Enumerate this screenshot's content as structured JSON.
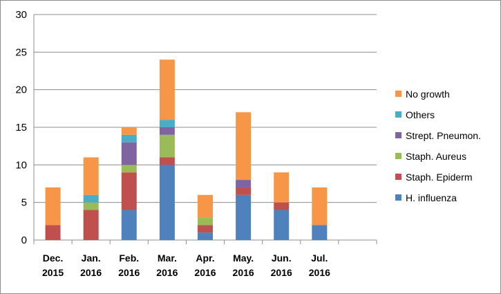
{
  "chart_data": {
    "type": "bar",
    "stacked": true,
    "categories": [
      [
        "Dec.",
        "2015"
      ],
      [
        "Jan.",
        "2016"
      ],
      [
        "Feb.",
        "2016"
      ],
      [
        "Mar.",
        "2016"
      ],
      [
        "Apr.",
        "2016"
      ],
      [
        "May.",
        "2016"
      ],
      [
        "Jun.",
        "2016"
      ],
      [
        "Jul.",
        "2016"
      ],
      [
        "",
        ""
      ]
    ],
    "series": [
      {
        "name": "H. influenza",
        "color": "#4f81bd",
        "values": [
          0,
          0,
          4,
          10,
          1,
          6,
          4,
          2,
          0
        ]
      },
      {
        "name": "Staph. Epiderm",
        "color": "#c0504d",
        "values": [
          2,
          4,
          5,
          1,
          1,
          1,
          1,
          0,
          0
        ]
      },
      {
        "name": "Staph. Aureus",
        "color": "#9bbb59",
        "values": [
          0,
          1,
          1,
          3,
          1,
          0,
          0,
          0,
          0
        ]
      },
      {
        "name": "Strept. Pneumon.",
        "color": "#8064a2",
        "values": [
          0,
          0,
          3,
          1,
          0,
          1,
          0,
          0,
          0
        ]
      },
      {
        "name": "Others",
        "color": "#4bacc6",
        "values": [
          0,
          1,
          1,
          1,
          0,
          0,
          0,
          0,
          0
        ]
      },
      {
        "name": "No growth",
        "color": "#f79646",
        "values": [
          5,
          5,
          1,
          8,
          3,
          9,
          4,
          5,
          0
        ]
      }
    ],
    "title": "",
    "xlabel": "",
    "ylabel": "",
    "ylim": [
      0,
      30
    ],
    "yticks": [
      "0",
      "5",
      "10",
      "15",
      "20",
      "25",
      "30"
    ],
    "grid": true,
    "legend_position": "right"
  }
}
